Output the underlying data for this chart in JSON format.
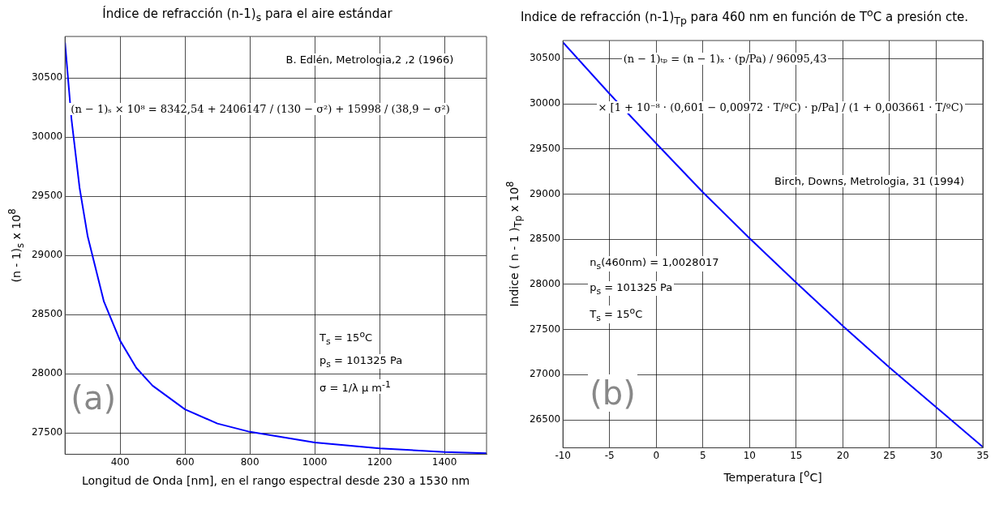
{
  "chart_data": [
    {
      "type": "line",
      "title": "Índice de refracción (n-1)$_{s}$ para el aire estándar",
      "xlabel": "Longitud de Onda [nm], en el rango espectral desde 230 a 1530 nm",
      "ylabel": "(n - 1)$_{s}$ x 10$^{8}$",
      "x": [
        230,
        250,
        275,
        300,
        350,
        400,
        450,
        500,
        600,
        700,
        800,
        1000,
        1200,
        1400,
        1530
      ],
      "series": [
        {
          "color": "#0000ff",
          "values": [
            30800,
            30150,
            29570,
            29160,
            28610,
            28280,
            28050,
            27900,
            27700,
            27580,
            27510,
            27420,
            27370,
            27340,
            27330
          ]
        }
      ],
      "xlim": [
        230,
        1530
      ],
      "ylim": [
        27320,
        30850
      ],
      "xticks": [
        400,
        600,
        800,
        1000,
        1200,
        1400
      ],
      "yticks": [
        27500,
        28000,
        28500,
        29000,
        29500,
        30000,
        30500
      ],
      "grid": true,
      "marker": "none",
      "line_style": "solid",
      "annotations": [
        "B. Edlén, Metrologia,2 ,2 (1966)",
        "(n − 1)ₛ × 10⁸ = 8342,54 + 2406147 / (130 − σ²) + 15998 / (38,9 − σ²)",
        "T$_{s}$ = 15$^{o}$C",
        "p$_{s}$ = 101325 Pa",
        "σ = 1/λ μ m$^{-1}$",
        "(a)"
      ]
    },
    {
      "type": "line",
      "title": "Indice de refracción (n-1)$_{Tp}$ para 460 nm en función de T$^{o}$C a presión cte.",
      "xlabel": "Temperatura [$^{o}$C]",
      "ylabel": "Indice ( n - 1 )$_{Tp}$ x 10$^{8}$",
      "x": [
        -10,
        -5,
        0,
        5,
        10,
        15,
        20,
        25,
        30,
        35
      ],
      "series": [
        {
          "color": "#0000ff",
          "values": [
            30680,
            30110,
            29560,
            29020,
            28510,
            28020,
            27540,
            27080,
            26640,
            26200
          ]
        }
      ],
      "xlim": [
        -10,
        35
      ],
      "ylim": [
        26190,
        30700
      ],
      "xticks": [
        -10,
        -5,
        0,
        5,
        10,
        15,
        20,
        25,
        30,
        35
      ],
      "yticks": [
        26500,
        27000,
        27500,
        28000,
        28500,
        29000,
        29500,
        30000,
        30500
      ],
      "grid": true,
      "marker": "none",
      "line_style": "solid",
      "annotations": [
        "(n − 1)ₜₚ = (n − 1)ₓ · (p/Pa) / 96095,43",
        "× [1 + 10⁻⁸ · (0,601 − 0,00972 · T/ºC) · p/Pa] / (1 + 0,003661 · T/ºC)",
        "Birch, Downs, Metrologia, 31 (1994)",
        "n$_{s}$(460nm) = 1,0028017",
        "p$_{s}$ = 101325 Pa",
        "T$_{s}$ = 15$^{o}$C",
        "(b)"
      ]
    }
  ]
}
